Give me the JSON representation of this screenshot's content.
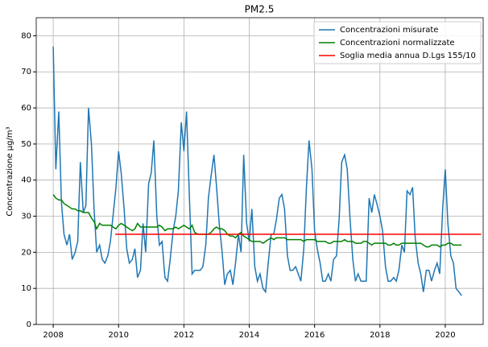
{
  "chart_data": {
    "type": "line",
    "title": "PM2.5",
    "y_label": "Concentrazione µg/m³",
    "x": [
      2008,
      2008.08,
      2008.17,
      2008.25,
      2008.33,
      2008.42,
      2008.5,
      2008.58,
      2008.67,
      2008.75,
      2008.83,
      2008.92,
      2009,
      2009.08,
      2009.17,
      2009.25,
      2009.33,
      2009.42,
      2009.5,
      2009.58,
      2009.67,
      2009.75,
      2009.83,
      2009.92,
      2010,
      2010.08,
      2010.17,
      2010.25,
      2010.33,
      2010.42,
      2010.5,
      2010.58,
      2010.67,
      2010.75,
      2010.83,
      2010.92,
      2011,
      2011.08,
      2011.17,
      2011.25,
      2011.33,
      2011.42,
      2011.5,
      2011.58,
      2011.67,
      2011.75,
      2011.83,
      2011.92,
      2012,
      2012.08,
      2012.17,
      2012.25,
      2012.33,
      2012.42,
      2012.5,
      2012.58,
      2012.67,
      2012.75,
      2012.83,
      2012.92,
      2013,
      2013.08,
      2013.17,
      2013.25,
      2013.33,
      2013.42,
      2013.5,
      2013.58,
      2013.67,
      2013.75,
      2013.83,
      2013.92,
      2014,
      2014.08,
      2014.17,
      2014.25,
      2014.33,
      2014.42,
      2014.5,
      2014.58,
      2014.67,
      2014.75,
      2014.83,
      2014.92,
      2015,
      2015.08,
      2015.17,
      2015.25,
      2015.33,
      2015.42,
      2015.5,
      2015.58,
      2015.67,
      2015.75,
      2015.83,
      2015.92,
      2016,
      2016.08,
      2016.17,
      2016.25,
      2016.33,
      2016.42,
      2016.5,
      2016.58,
      2016.67,
      2016.75,
      2016.83,
      2016.92,
      2017,
      2017.08,
      2017.17,
      2017.25,
      2017.33,
      2017.42,
      2017.5,
      2017.58,
      2017.67,
      2017.75,
      2017.83,
      2017.92,
      2018,
      2018.08,
      2018.17,
      2018.25,
      2018.33,
      2018.42,
      2018.5,
      2018.58,
      2018.67,
      2018.75,
      2018.83,
      2018.92,
      2019,
      2019.08,
      2019.17,
      2019.25,
      2019.33,
      2019.42,
      2019.5,
      2019.58,
      2019.67,
      2019.75,
      2019.83,
      2019.92,
      2020,
      2020.08,
      2020.17,
      2020.25,
      2020.33,
      2020.42,
      2020.5
    ],
    "series": [
      {
        "name": "Concentrazioni misurate",
        "color": "#1f77b4",
        "values": [
          77,
          43,
          59,
          34,
          25,
          22,
          25,
          18,
          20,
          23,
          45,
          31,
          33,
          60,
          50,
          32,
          20,
          22,
          18,
          17,
          19,
          23,
          30,
          38,
          48,
          42,
          32,
          21,
          17,
          18,
          21,
          13,
          15,
          28,
          20,
          39,
          42,
          51,
          30,
          22,
          23,
          13,
          12,
          18,
          26,
          30,
          37,
          56,
          48,
          59,
          35,
          14,
          15,
          15,
          15,
          16,
          22,
          35,
          41,
          47,
          38,
          28,
          20,
          11,
          14,
          15,
          11,
          17,
          25,
          20,
          47,
          28,
          23,
          32,
          16,
          12,
          14,
          10,
          9,
          17,
          25,
          25,
          29,
          35,
          36,
          32,
          19,
          15,
          15,
          16,
          14,
          12,
          21,
          38,
          51,
          43,
          26,
          21,
          17,
          12,
          12,
          14,
          12,
          18,
          19,
          29,
          45,
          47,
          43,
          30,
          18,
          12,
          14,
          12,
          12,
          12,
          35,
          31,
          36,
          33,
          30,
          26,
          16,
          12,
          12,
          13,
          12,
          15,
          22,
          20,
          37,
          36,
          38,
          24,
          17,
          14,
          9,
          15,
          15,
          12,
          15,
          17,
          14,
          32,
          43,
          28,
          19,
          17,
          10,
          9,
          8
        ]
      },
      {
        "name": "Concentrazioni normalizzate",
        "color": "#008000",
        "values": [
          36,
          35,
          34.5,
          34.5,
          33.5,
          33,
          32.5,
          32,
          32,
          31.5,
          31.5,
          31,
          31,
          31,
          29.5,
          28.5,
          26.5,
          28,
          27.5,
          27.5,
          27.5,
          27.5,
          27,
          26.5,
          27.5,
          28,
          27.5,
          27,
          26.5,
          26,
          26.5,
          28,
          27,
          27,
          27,
          27,
          27,
          27,
          27,
          27.5,
          27,
          26,
          26.5,
          26.5,
          26.5,
          27,
          26.5,
          27,
          27.5,
          27,
          26.5,
          27.5,
          25.5,
          25,
          25,
          25,
          25,
          25,
          25.5,
          26.5,
          27,
          26.5,
          26.5,
          26,
          25,
          24.5,
          24.5,
          24,
          25,
          25.5,
          24.5,
          24,
          23.5,
          23,
          23,
          23,
          23,
          22.5,
          23,
          23.5,
          24,
          23.5,
          24,
          24,
          24,
          24,
          23.5,
          23.5,
          23.5,
          23.5,
          23.5,
          23.5,
          23,
          23.5,
          23.5,
          23.5,
          23.5,
          23,
          23,
          23,
          23,
          22.5,
          22.5,
          23,
          23,
          23,
          23,
          23.5,
          23,
          23,
          23,
          22.5,
          22.5,
          22.5,
          23,
          23,
          22.5,
          22,
          22.5,
          22.5,
          22.5,
          22.5,
          22.5,
          22,
          22,
          22.5,
          22,
          22,
          22.5,
          22.5,
          22.5,
          22.5,
          22.5,
          22.5,
          22.5,
          22.5,
          22,
          21.5,
          21.5,
          22,
          22,
          22,
          21.5,
          22,
          22,
          22.5,
          22.5,
          22,
          22,
          22,
          22
        ]
      },
      {
        "name": "Soglia media annua D.Lgs 155/10",
        "color": "#ff0000",
        "x": [
          2009.9,
          2021.1
        ],
        "values": [
          25,
          25
        ]
      }
    ],
    "xlim": [
      2007.48,
      2021.16
    ],
    "xticks": [
      2008,
      2010,
      2012,
      2014,
      2016,
      2018,
      2020
    ],
    "ylim": [
      0,
      85
    ],
    "yticks": [
      0,
      10,
      20,
      30,
      40,
      50,
      60,
      70,
      80
    ],
    "grid": true,
    "legend": "upper right"
  }
}
